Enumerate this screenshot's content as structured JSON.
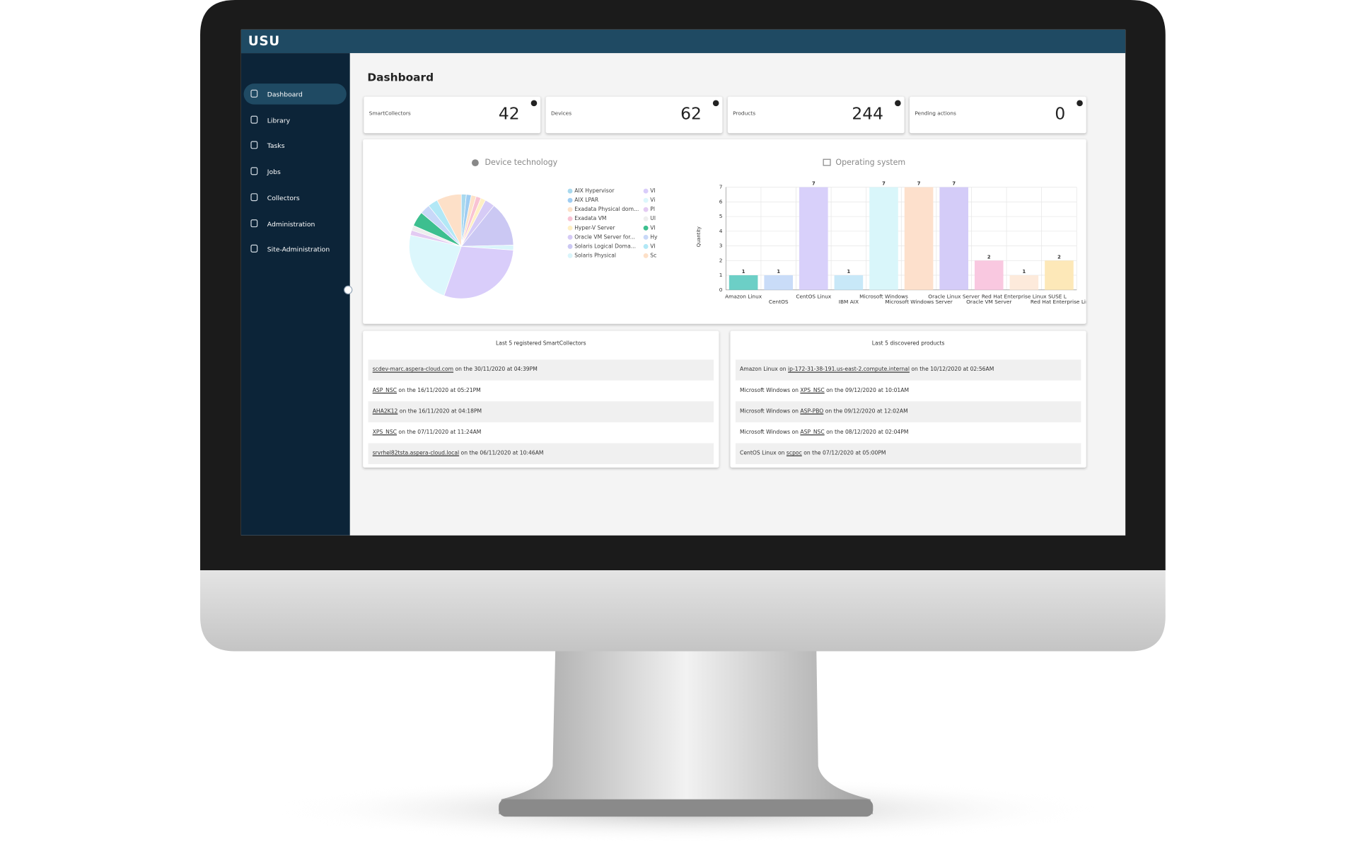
{
  "header": {
    "brand": "USU"
  },
  "sidebar": {
    "items": [
      "Dashboard",
      "Library",
      "Tasks",
      "Jobs",
      "Collectors",
      "Administration",
      "Site-Administration"
    ]
  },
  "page_title": "Dashboard",
  "kpis": [
    {
      "label": "SmartCollectors",
      "value": 42
    },
    {
      "label": "Devices",
      "value": 62
    },
    {
      "label": "Products",
      "value": 244
    },
    {
      "label": "Pending actions",
      "value": 0
    }
  ],
  "chart_data": [
    {
      "type": "pie",
      "title": "Device technology",
      "categories": [
        "AIX Hypervisor",
        "AIX LPAR",
        "Exadata Physical dom...",
        "Exadata VM",
        "Hyper-V Server",
        "Oracle VM Server for...",
        "Solaris Logical Doma...",
        "Solaris Physical",
        "VI",
        "Vi",
        "Pl",
        "Ul",
        "VI",
        "Hy",
        "VI",
        "Sc"
      ],
      "values": [
        1,
        1,
        1,
        1,
        1,
        2,
        9,
        1,
        19,
        15,
        1,
        1,
        3,
        2,
        2,
        5
      ],
      "colors": [
        "#a9d9ee",
        "#9fcdf2",
        "#fde2c8",
        "#f9c3d3",
        "#fff0c4",
        "#d6cbf6",
        "#cbc8f3",
        "#d9f5fb",
        "#d9cdfa",
        "#dcf7fc",
        "#e3cbf2",
        "#eeeeee",
        "#3dbf8f",
        "#c8d8f8",
        "#b2e8f6",
        "#fde0c8"
      ]
    },
    {
      "type": "bar",
      "title": "Operating system",
      "y_label": "Quantity",
      "categories": [
        "Amazon Linux",
        "CentOS",
        "CentOS Linux",
        "IBM AIX",
        "Microsoft Windows",
        "Microsoft Windows Server",
        "Oracle Linux Server",
        "Oracle VM Server",
        "Red Hat Enterprise Linux SUSE L",
        "Red Hat Enterprise Lir"
      ],
      "values": [
        1,
        1,
        7,
        1,
        7,
        7,
        7,
        2,
        1,
        2
      ],
      "colors": [
        "#6ccfc6",
        "#c9dcf8",
        "#d8d0fa",
        "#c8e8f8",
        "#d9f6fa",
        "#fde0cc",
        "#d4ccf8",
        "#f9c8e0",
        "#fdeadb",
        "#fde8b8"
      ],
      "ylim": [
        0,
        7
      ],
      "yticks": [
        0,
        1,
        2,
        3,
        4,
        5,
        6,
        7
      ],
      "grid": true
    }
  ],
  "lists": [
    {
      "title": "Last 5 registered SmartCollectors",
      "rows": [
        {
          "link": "scdev-marc.aspera-cloud.com",
          "text": "on the 30/11/2020 at 04:39PM"
        },
        {
          "link": "ASP_NSC",
          "text": "on the 16/11/2020 at 05:21PM"
        },
        {
          "link": "AHA2K12",
          "text": "on the 16/11/2020 at 04:18PM"
        },
        {
          "link": "XPS_NSC",
          "text": "on the 07/11/2020 at 11:24AM"
        },
        {
          "link": "srvrhel82tsta.aspera-cloud.local",
          "text": "on the 06/11/2020 at 10:46AM"
        }
      ]
    },
    {
      "title": "Last 5 discovered products",
      "rows": [
        {
          "prefix": "Amazon Linux on",
          "link": "ip-172-31-38-191.us-east-2.compute.internal",
          "text": "on the 10/12/2020 at 02:56AM"
        },
        {
          "prefix": "Microsoft Windows on",
          "link": "XPS_NSC",
          "text": "on the 09/12/2020 at 10:01AM"
        },
        {
          "prefix": "Microsoft Windows on",
          "link": "ASP-PBO",
          "text": "on the 09/12/2020 at 12:02AM"
        },
        {
          "prefix": "Microsoft Windows on",
          "link": "ASP_NSC",
          "text": "on the 08/12/2020 at 02:04PM"
        },
        {
          "prefix": "CentOS Linux on",
          "link": "scpoc",
          "text": "on the 07/12/2020 at 05:00PM"
        }
      ]
    }
  ]
}
